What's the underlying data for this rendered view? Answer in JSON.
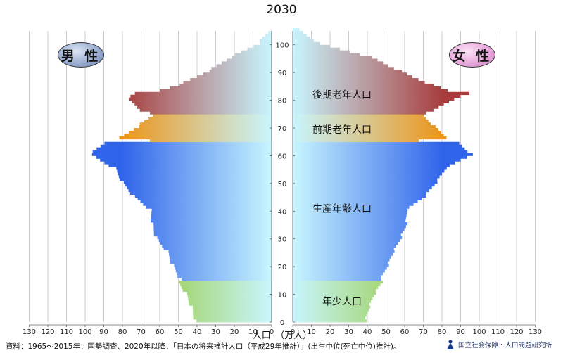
{
  "title": "2030",
  "labels": {
    "male": "男 性",
    "female": "女 性",
    "x_axis": "人口　（万人）",
    "source": "資料：1965〜2015年：国勢調査、2020年以降：「日本の将来推計人口（平成29年推計）」(出生中位(死亡中位)推計)。",
    "org": "国立社会保障・人口問題研究所"
  },
  "colors": {
    "old_old": "#a83c3c",
    "young_old": "#ec9418",
    "working": "#2f63ea",
    "youth": "#8fc21e",
    "center": "#c8f6ff",
    "grid": "#c0c0c0"
  },
  "chart_data": {
    "type": "population-pyramid",
    "title": "2030",
    "xlabel": "人口　（万人）",
    "ylabel": "",
    "xlim": [
      0,
      130
    ],
    "ylim": [
      0,
      105
    ],
    "x_ticks": [
      0,
      10,
      20,
      30,
      40,
      50,
      60,
      70,
      80,
      90,
      100,
      110,
      120,
      130
    ],
    "y_ticks": [
      0,
      10,
      20,
      30,
      40,
      50,
      60,
      70,
      80,
      90,
      100
    ],
    "bands": [
      {
        "name": "年少人口",
        "from_age": 0,
        "to_age": 14,
        "label_age": 7.5
      },
      {
        "name": "生産年齢人口",
        "from_age": 15,
        "to_age": 64,
        "label_age": 41
      },
      {
        "name": "前期老年人口",
        "from_age": 65,
        "to_age": 74,
        "label_age": 69.5
      },
      {
        "name": "後期老年人口",
        "from_age": 75,
        "to_age": 105,
        "label_age": 82
      }
    ],
    "age_points": [
      0,
      5,
      10,
      14,
      15,
      20,
      25,
      30,
      35,
      40,
      45,
      50,
      55,
      58,
      60,
      64,
      65,
      66,
      70,
      74,
      75,
      76,
      80,
      82,
      83,
      85,
      88,
      90,
      95,
      100,
      105
    ],
    "series": [
      {
        "name": "男 性",
        "values": [
          41,
          43,
          46,
          50,
          49,
          53,
          56,
          62,
          64,
          65,
          74,
          80,
          84,
          92,
          97,
          90,
          66,
          81,
          72,
          64,
          66,
          70,
          77,
          73,
          60,
          50,
          40,
          34,
          22,
          7,
          1
        ]
      },
      {
        "name": "女 性",
        "values": [
          39,
          41,
          44,
          48,
          47,
          51,
          54,
          58,
          61,
          61,
          71,
          77,
          82,
          90,
          96,
          89,
          67,
          83,
          76,
          70,
          71,
          76,
          86,
          95,
          83,
          75,
          64,
          58,
          42,
          14,
          3
        ]
      }
    ]
  }
}
